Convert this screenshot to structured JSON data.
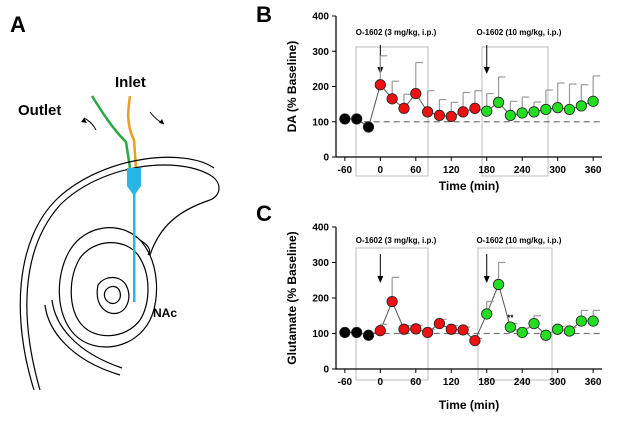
{
  "panels": {
    "a": "A",
    "b": "B",
    "c": "C"
  },
  "diagram": {
    "outlet": "Outlet",
    "inlet": "Inlet",
    "region": "NAc"
  },
  "colors": {
    "baseline": "#000000",
    "low_dose": "#ee1111",
    "high_dose": "#22dd22",
    "error_bar": "#999999",
    "probe": "#29b6e6",
    "inlet_tube": "#e8a020",
    "outlet_tube": "#2aa845"
  },
  "chart_data": [
    {
      "id": "B",
      "type": "scatter",
      "ylabel": "DA (% Baseline)",
      "xlabel": "Time (min)",
      "ylim": [
        0,
        400
      ],
      "yticks": [
        0,
        100,
        200,
        300,
        400
      ],
      "xlim": [
        -75,
        375
      ],
      "xticks": [
        -60,
        0,
        60,
        120,
        180,
        240,
        300,
        360
      ],
      "baseline": 100,
      "annotations": [
        {
          "text": "O-1602 (3 mg/kg, i.p.)",
          "x": 0
        },
        {
          "text": "O-1602 (10 mg/kg, i.p.)",
          "x": 180
        }
      ],
      "series": [
        {
          "name": "baseline",
          "x": [
            -60,
            -40,
            -20
          ],
          "y": [
            108,
            108,
            85
          ],
          "err": [
            0,
            0,
            0
          ]
        },
        {
          "name": "3 mg/kg",
          "x": [
            0,
            20,
            40,
            60,
            80,
            100,
            120,
            140,
            160
          ],
          "y": [
            205,
            165,
            138,
            180,
            128,
            118,
            115,
            128,
            138
          ],
          "err": [
            82,
            50,
            40,
            88,
            60,
            45,
            40,
            55,
            50
          ]
        },
        {
          "name": "10 mg/kg",
          "x": [
            180,
            200,
            220,
            240,
            260,
            280,
            300,
            320,
            340,
            360
          ],
          "y": [
            130,
            155,
            118,
            125,
            128,
            135,
            140,
            135,
            145,
            158
          ],
          "err": [
            50,
            72,
            40,
            45,
            28,
            55,
            70,
            72,
            60,
            72
          ]
        }
      ]
    },
    {
      "id": "C",
      "type": "scatter",
      "ylabel": "Glutamate (% Baseline)",
      "xlabel": "Time (min)",
      "ylim": [
        0,
        400
      ],
      "yticks": [
        0,
        100,
        200,
        300,
        400
      ],
      "xlim": [
        -75,
        375
      ],
      "xticks": [
        -60,
        0,
        60,
        120,
        180,
        240,
        300,
        360
      ],
      "baseline": 100,
      "annotations": [
        {
          "text": "O-1602 (3 mg/kg, i.p.)",
          "x": 0
        },
        {
          "text": "O-1602 (10 mg/kg, i.p.)",
          "x": 180
        },
        {
          "text": "**",
          "x": 220
        }
      ],
      "series": [
        {
          "name": "baseline",
          "x": [
            -60,
            -40,
            -20
          ],
          "y": [
            103,
            103,
            95
          ],
          "err": [
            0,
            0,
            0
          ]
        },
        {
          "name": "3 mg/kg",
          "x": [
            0,
            20,
            40,
            60,
            80,
            100,
            120,
            140,
            160
          ],
          "y": [
            108,
            190,
            112,
            113,
            103,
            128,
            112,
            110,
            80
          ],
          "err": [
            18,
            68,
            10,
            10,
            8,
            12,
            10,
            8,
            6
          ]
        },
        {
          "name": "10 mg/kg",
          "x": [
            180,
            200,
            220,
            240,
            260,
            280,
            300,
            320,
            340,
            360
          ],
          "y": [
            155,
            238,
            118,
            103,
            128,
            95,
            112,
            107,
            135,
            135
          ],
          "err": [
            35,
            62,
            10,
            12,
            22,
            8,
            8,
            10,
            30,
            30
          ]
        }
      ]
    }
  ]
}
